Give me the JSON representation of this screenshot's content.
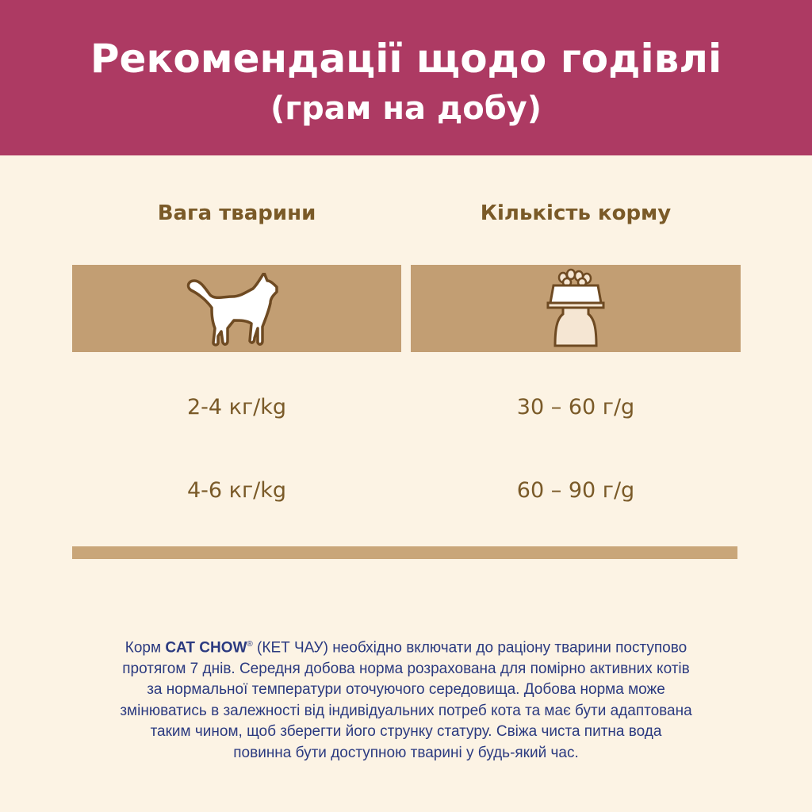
{
  "header": {
    "title": "Рекомендації щодо годівлі",
    "subtitle": "(грам на добу)"
  },
  "table": {
    "columns": [
      {
        "label": "Вага тварини",
        "icon": "cat-icon"
      },
      {
        "label": "Кількість корму",
        "icon": "food-bowl-icon"
      }
    ],
    "rows": [
      [
        "2-4 кг/kg",
        "30 – 60 г/g"
      ],
      [
        "4-6 кг/kg",
        "60 – 90 г/g"
      ]
    ]
  },
  "note": {
    "prefix": "Корм ",
    "brand": "CAT CHOW",
    "reg": "®",
    "line1_rest": " (КЕТ ЧАУ) необхідно включати до раціону тварини поступово",
    "lines": [
      "протягом 7 днів. Середня добова норма розрахована для помірно активних котів",
      "за нормальної температури оточуючого середовища. Добова норма може",
      "змінюватись в залежності від індивідуальних потреб кота та має бути адаптована",
      "таким чином, щоб зберегти його струнку статуру. Свіжа чиста питна вода",
      "повинна бути доступною тварині у будь-який час."
    ]
  },
  "colors": {
    "header": "#ad3a63",
    "background": "#fcf3e4",
    "panel": "#c29e73",
    "text_brown": "#7a5a28",
    "text_navy": "#2b3a80"
  }
}
